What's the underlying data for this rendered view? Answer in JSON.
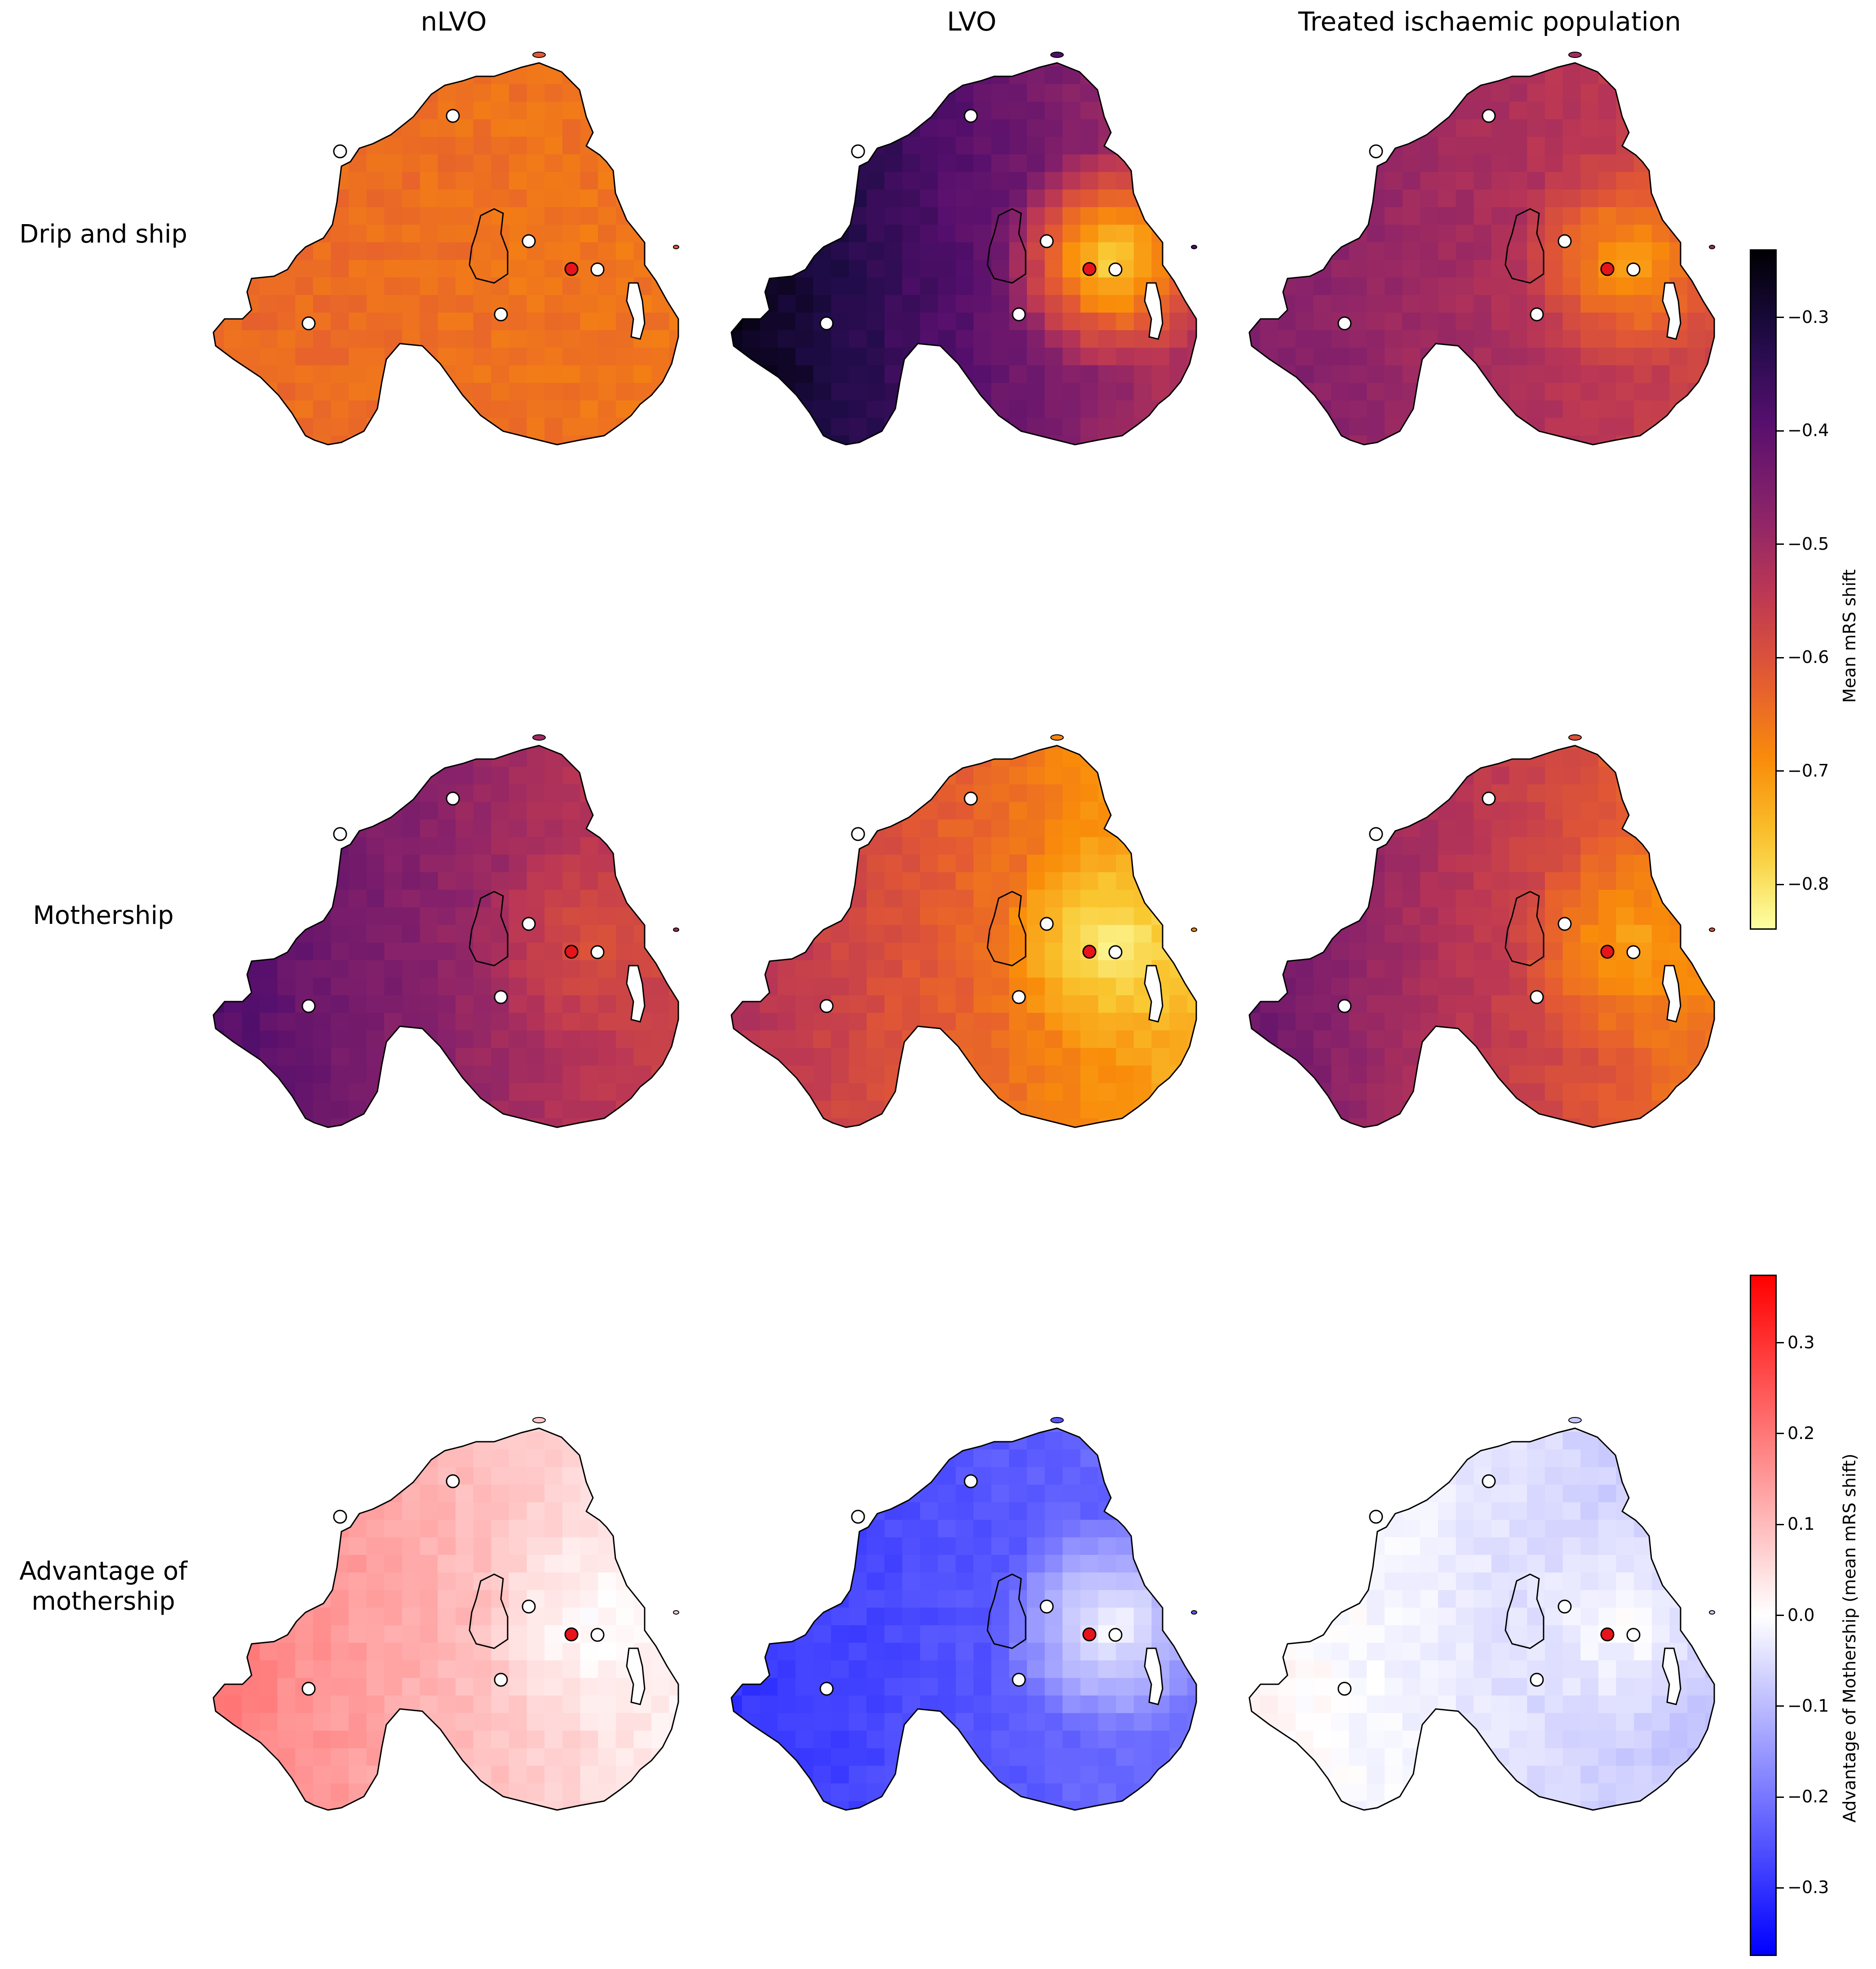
{
  "columns": [
    {
      "title": "nLVO"
    },
    {
      "title": "LVO"
    },
    {
      "title": "Treated ischaemic population"
    }
  ],
  "rows": [
    {
      "title": "Drip and ship"
    },
    {
      "title": "Mothership"
    },
    {
      "title": "Advantage of\nmothership"
    }
  ],
  "colorbars": {
    "outcome": {
      "label": "Mean mRS shift",
      "colormap": "inferno",
      "range": [
        -0.84,
        -0.24
      ],
      "ticks": [
        "−0.3",
        "−0.4",
        "−0.5",
        "−0.6",
        "−0.7",
        "−0.8"
      ],
      "tick_values": [
        -0.3,
        -0.4,
        -0.5,
        -0.6,
        -0.7,
        -0.8
      ]
    },
    "diff": {
      "label": "Advantage of Mothership (mean mRS shift)",
      "colormap": "bwr",
      "range": [
        -0.375,
        0.375
      ],
      "ticks": [
        "0.3",
        "0.2",
        "0.1",
        "0.0",
        "−0.1",
        "−0.2",
        "−0.3"
      ],
      "tick_values": [
        0.3,
        0.2,
        0.1,
        0.0,
        -0.1,
        -0.2,
        -0.3
      ]
    }
  },
  "map_panels": [
    {
      "row": 0,
      "col": 0,
      "scale": "outcome",
      "mean": -0.62,
      "west": -0.64,
      "east": -0.66,
      "belfast": -0.66
    },
    {
      "row": 0,
      "col": 1,
      "scale": "outcome",
      "mean": -0.38,
      "west": -0.25,
      "east": -0.55,
      "belfast": -0.8
    },
    {
      "row": 0,
      "col": 2,
      "scale": "outcome",
      "mean": -0.5,
      "west": -0.45,
      "east": -0.58,
      "belfast": -0.72
    },
    {
      "row": 1,
      "col": 0,
      "scale": "outcome",
      "mean": -0.5,
      "west": -0.38,
      "east": -0.58,
      "belfast": -0.6
    },
    {
      "row": 1,
      "col": 1,
      "scale": "outcome",
      "mean": -0.68,
      "west": -0.52,
      "east": -0.75,
      "belfast": -0.82
    },
    {
      "row": 1,
      "col": 2,
      "scale": "outcome",
      "mean": -0.6,
      "west": -0.42,
      "east": -0.68,
      "belfast": -0.72
    },
    {
      "row": 2,
      "col": 0,
      "scale": "diff",
      "mean": 0.08,
      "west": 0.2,
      "east": 0.01,
      "belfast": 0.0
    },
    {
      "row": 2,
      "col": 1,
      "scale": "diff",
      "mean": -0.25,
      "west": -0.3,
      "east": -0.2,
      "belfast": 0.0
    },
    {
      "row": 2,
      "col": 2,
      "scale": "diff",
      "mean": -0.08,
      "west": 0.02,
      "east": -0.1,
      "belfast": 0.0
    }
  ],
  "units": [
    {
      "type": "IVT unit",
      "color": "#ffffff"
    },
    {
      "type": "IVT unit",
      "color": "#ffffff"
    },
    {
      "type": "IVT unit",
      "color": "#ffffff"
    },
    {
      "type": "IVT unit",
      "color": "#ffffff"
    },
    {
      "type": "IVT unit",
      "color": "#ffffff"
    },
    {
      "type": "IVT unit",
      "color": "#ffffff"
    },
    {
      "type": "MT unit",
      "color": "#e8141c"
    }
  ]
}
